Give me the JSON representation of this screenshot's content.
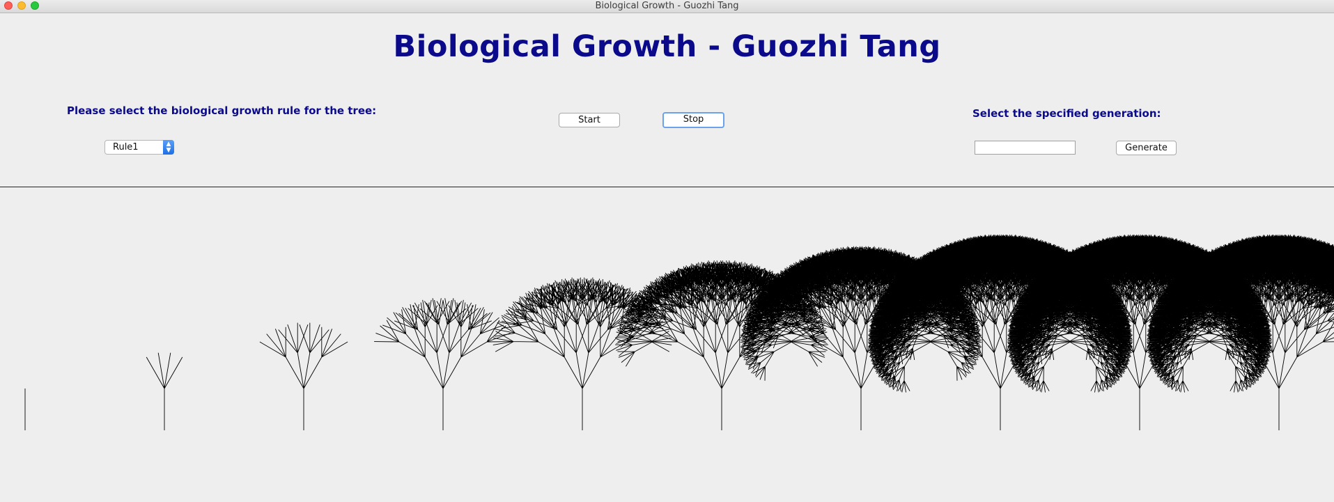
{
  "window": {
    "title": "Biological Growth - Guozhi Tang"
  },
  "header": {
    "title": "Biological Growth - Guozhi Tang"
  },
  "controls": {
    "rule_prompt": "Please select the biological growth rule for the tree:",
    "rule_select": {
      "value": "Rule1"
    },
    "start_label": "Start",
    "stop_label": "Stop",
    "generation_prompt": "Select the specified generation:",
    "generation_input": {
      "value": "",
      "placeholder": ""
    },
    "generate_label": "Generate"
  },
  "canvas": {
    "trees": [
      {
        "generation": 0
      },
      {
        "generation": 1
      },
      {
        "generation": 2
      },
      {
        "generation": 3
      },
      {
        "generation": 4
      },
      {
        "generation": 5
      },
      {
        "generation": 6
      },
      {
        "generation": 7
      },
      {
        "generation": 8
      },
      {
        "generation": 9
      }
    ],
    "line_color": "#000000",
    "background": "#eeeeee"
  }
}
